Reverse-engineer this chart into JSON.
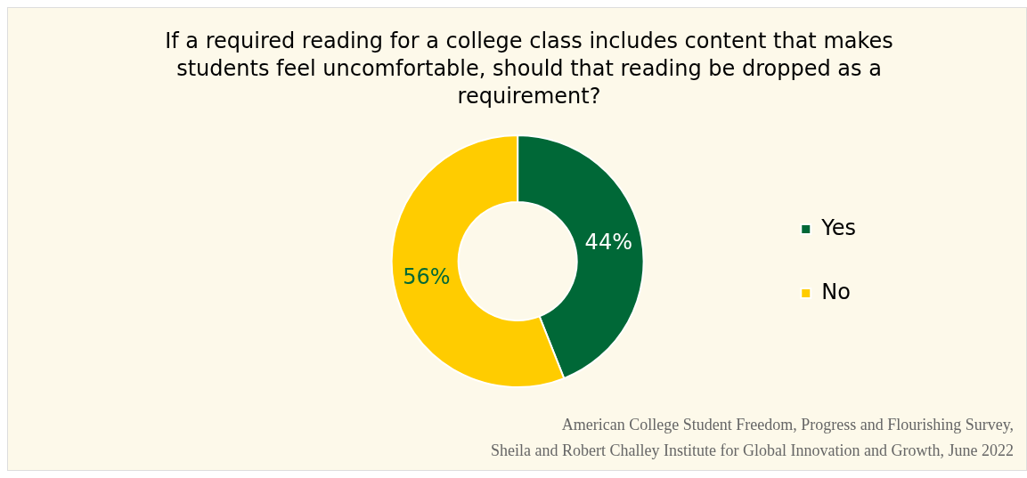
{
  "chart_data": {
    "type": "donut",
    "title": "If a required reading for a college class includes content that makes students feel uncomfortable, should that reading be dropped as a requirement?",
    "categories": [
      "Yes",
      "No"
    ],
    "values": [
      44,
      56
    ],
    "colors": [
      "#006837",
      "#ffcc00"
    ],
    "value_labels": [
      "44%",
      "56%"
    ],
    "legend": "right",
    "annotations": [
      "American College Student Freedom, Progress and Flourishing Survey,",
      "Sheila and Robert Challey Institute for Global Innovation and Growth, June 2022"
    ]
  }
}
